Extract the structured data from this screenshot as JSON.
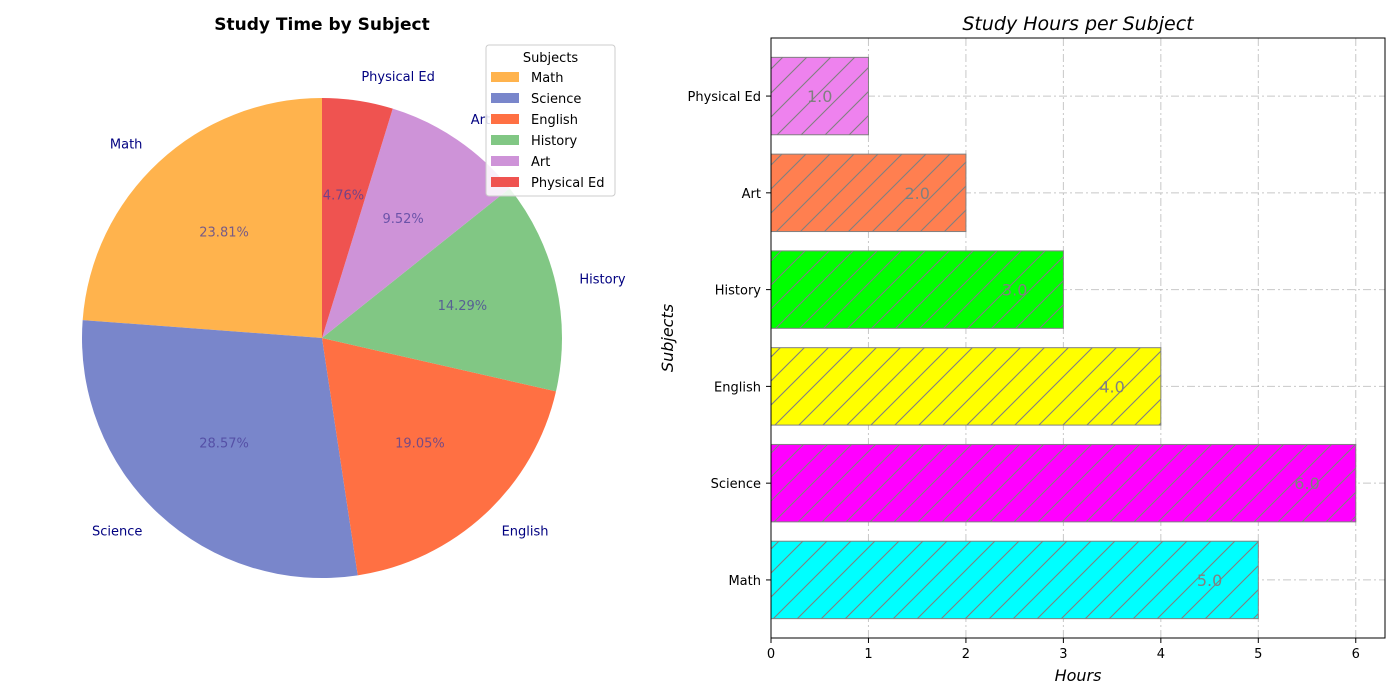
{
  "chart_data": [
    {
      "type": "pie",
      "title": "Study Time by Subject",
      "categories": [
        "Math",
        "Science",
        "English",
        "History",
        "Art",
        "Physical Ed"
      ],
      "values": [
        5,
        6,
        4,
        3,
        2,
        1
      ],
      "percent_labels": [
        "23.81%",
        "28.57%",
        "19.05%",
        "14.29%",
        "9.52%",
        "4.76%"
      ],
      "colors": [
        "#ffb34d",
        "#7986cb",
        "#ff7043",
        "#81c784",
        "#ce93d8",
        "#ef5350"
      ],
      "legend": {
        "title": "Subjects",
        "placement": "top-right"
      }
    },
    {
      "type": "bar",
      "orientation": "horizontal",
      "title": "Study Hours per Subject",
      "xlabel": "Hours",
      "ylabel": "Subjects",
      "categories": [
        "Math",
        "Science",
        "English",
        "History",
        "Art",
        "Physical Ed"
      ],
      "values": [
        5,
        6,
        4,
        3,
        2,
        1
      ],
      "value_labels": [
        "5.0",
        "6.0",
        "4.0",
        "3.0",
        "2.0",
        "1.0"
      ],
      "colors": [
        "#00ffff",
        "#ff00ff",
        "#ffff00",
        "#00ff00",
        "#ff7f50",
        "#ee82ee"
      ],
      "hatch": "/",
      "xlim": [
        0,
        6.3
      ],
      "xticks": [
        "0",
        "1",
        "2",
        "3",
        "4",
        "5",
        "6"
      ],
      "grid": true
    }
  ]
}
